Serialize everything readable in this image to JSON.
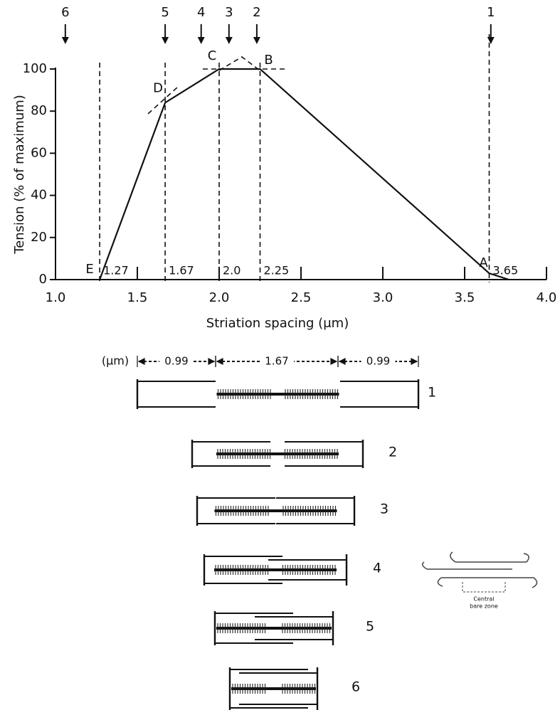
{
  "chart_data": {
    "type": "line",
    "x": [
      1.27,
      1.67,
      2.0,
      2.25,
      3.65,
      3.77
    ],
    "values": [
      0,
      84,
      100,
      100,
      3,
      0
    ],
    "color": "#111111",
    "x_label": "Striation spacing (μm)",
    "y_label": "Tension (% of maximum)",
    "xlim": [
      1.0,
      4.0
    ],
    "xticks": [
      {
        "value": 1.0,
        "label": "1.0"
      },
      1.5,
      {
        "value": 2.0,
        "label": "2.0"
      },
      2.5,
      {
        "value": 3.0,
        "label": "3.0"
      },
      3.5,
      {
        "value": 4.0,
        "label": "4.0"
      }
    ],
    "ylim": [
      0,
      100
    ],
    "yticks": [
      0,
      20,
      40,
      60,
      80,
      100
    ],
    "reference_lines": [
      {
        "x": 1.27,
        "label": "1.27"
      },
      {
        "x": 1.67,
        "label": "1.67"
      },
      {
        "x": 2.0,
        "label": "2.0"
      },
      {
        "x": 2.25,
        "label": "2.25"
      },
      {
        "x": 3.65,
        "label": "3.65"
      }
    ],
    "point_labels": [
      {
        "label": "E",
        "x": 1.27,
        "y": 0
      },
      {
        "label": "D",
        "x": 1.67,
        "y": 84
      },
      {
        "label": "C",
        "x": 2.0,
        "y": 100
      },
      {
        "label": "B",
        "x": 2.25,
        "y": 100
      },
      {
        "label": "A",
        "x": 3.65,
        "y": 3
      }
    ],
    "markers": [
      {
        "label": "6",
        "x": 1.06
      },
      {
        "label": "5",
        "x": 1.67
      },
      {
        "label": "4",
        "x": 1.89
      },
      {
        "label": "3",
        "x": 2.06
      },
      {
        "label": "2",
        "x": 2.23
      },
      {
        "label": "1",
        "x": 3.66
      }
    ]
  },
  "diagram": {
    "unit_label": "(μm)",
    "dimensions": [
      "0.99",
      "1.67",
      "0.99"
    ],
    "sarcomere_labels": [
      "1",
      "2",
      "3",
      "4",
      "5",
      "6"
    ],
    "inset_caption": [
      "Central",
      "bare zone"
    ]
  }
}
